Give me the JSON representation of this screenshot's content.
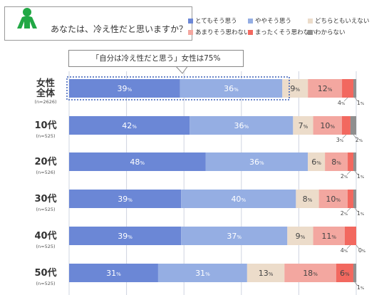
{
  "question": "あなたは、冷え性だと思いますか？",
  "callout": "「自分は冷え性だと思う」女性は75%",
  "colors": {
    "person_icon": "#22a845",
    "frame": "#9a9a9a",
    "highlight_border": "#3a5fb8",
    "grid": "#cfd4e0"
  },
  "legend": [
    {
      "label": "とてもそう思う",
      "color": "#6b87d6"
    },
    {
      "label": "ややそう思う",
      "color": "#95aee3"
    },
    {
      "label": "どちらともいえない",
      "color": "#ecdcca"
    },
    {
      "label": "あまりそう思わない",
      "color": "#f3a7a0"
    },
    {
      "label": "まったくそう思わない",
      "color": "#f2685f"
    },
    {
      "label": "わからない",
      "color": "#8f8f8f"
    }
  ],
  "chart_data": {
    "type": "bar",
    "orientation": "horizontal",
    "stacked": true,
    "unit": "%",
    "categories": [
      {
        "name_lines": [
          "女性",
          "全体"
        ],
        "n": "(n=2626)"
      },
      {
        "name_lines": [
          "10代"
        ],
        "n": "(n=525)"
      },
      {
        "name_lines": [
          "20代"
        ],
        "n": "(n=526)"
      },
      {
        "name_lines": [
          "30代"
        ],
        "n": "(n=525)"
      },
      {
        "name_lines": [
          "40代"
        ],
        "n": "(n=525)"
      },
      {
        "name_lines": [
          "50代"
        ],
        "n": "(n=525)"
      }
    ],
    "series": [
      {
        "name": "とてもそう思う",
        "values": [
          39,
          42,
          48,
          39,
          39,
          31
        ]
      },
      {
        "name": "ややそう思う",
        "values": [
          36,
          36,
          36,
          40,
          37,
          31
        ]
      },
      {
        "name": "どちらともいえない",
        "values": [
          9,
          7,
          6,
          8,
          9,
          13
        ]
      },
      {
        "name": "あまりそう思わない",
        "values": [
          12,
          10,
          8,
          10,
          11,
          18
        ]
      },
      {
        "name": "まったくそう思わない",
        "values": [
          4,
          3,
          2,
          2,
          4,
          6
        ]
      },
      {
        "name": "わからない",
        "values": [
          1,
          2,
          1,
          1,
          0,
          1
        ]
      }
    ],
    "highlighted_category": "女性全体",
    "grid": true,
    "legend_position": "top-right"
  }
}
